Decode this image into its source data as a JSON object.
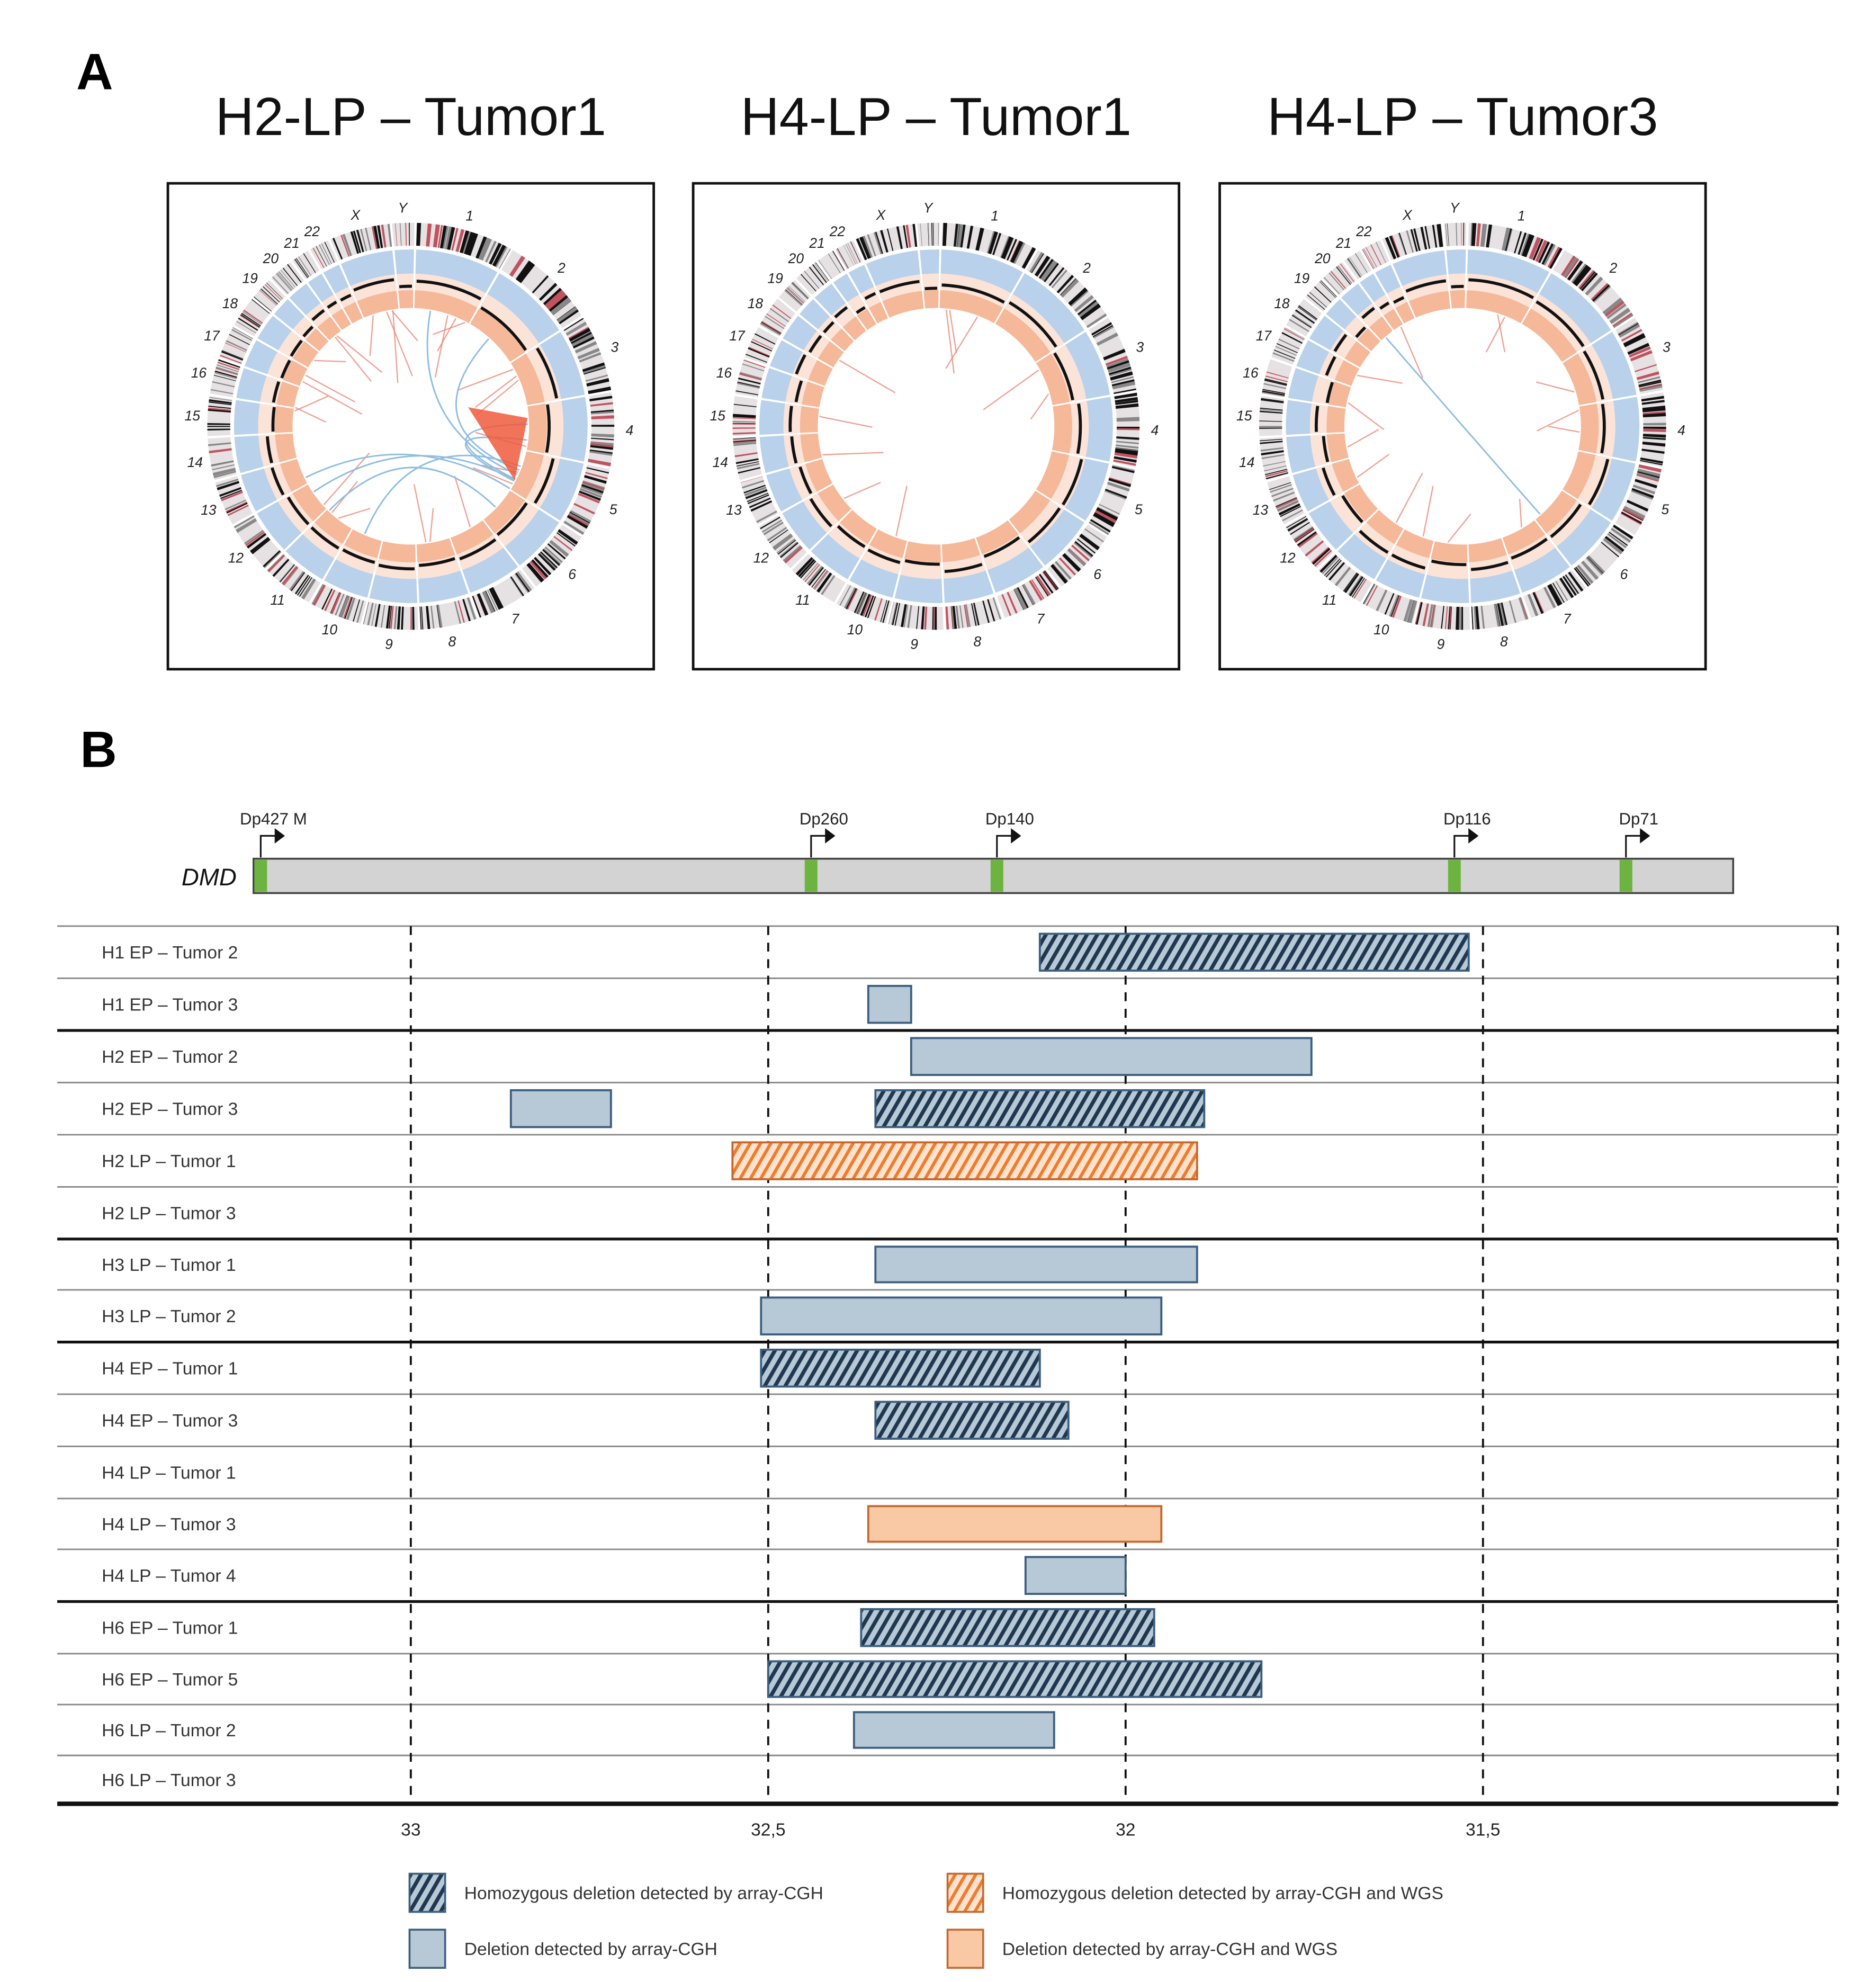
{
  "panel_a": {
    "label": "A",
    "plots": [
      {
        "title": "H2-LP – Tumor1"
      },
      {
        "title": "H4-LP – Tumor1"
      },
      {
        "title": "H4-LP – Tumor3"
      }
    ],
    "chromosomes": [
      "1",
      "2",
      "3",
      "4",
      "5",
      "6",
      "7",
      "8",
      "9",
      "10",
      "11",
      "12",
      "13",
      "14",
      "15",
      "16",
      "17",
      "18",
      "19",
      "20",
      "21",
      "22",
      "X",
      "Y"
    ]
  },
  "panel_b": {
    "label": "B"
  },
  "chart_data": {
    "type": "range-bar",
    "title": "",
    "xlabel": "",
    "ylabel": "",
    "x_ticks": [
      "33",
      "32,5",
      "32",
      "31,5"
    ],
    "x_tick_values": [
      33,
      32.5,
      32,
      31.5
    ],
    "xlim": [
      33.5,
      31.0
    ],
    "x_reversed": true,
    "gene": {
      "name": "DMD",
      "start": 33.22,
      "end": 31.15,
      "promoters": [
        {
          "name": "Dp427 M",
          "pos": 33.21
        },
        {
          "name": "Dp260",
          "pos": 32.44
        },
        {
          "name": "Dp140",
          "pos": 32.18
        },
        {
          "name": "Dp116",
          "pos": 31.54
        },
        {
          "name": "Dp71",
          "pos": 31.3
        }
      ]
    },
    "rows": [
      {
        "label": "H1 EP – Tumor 2",
        "segments": [
          {
            "start": 32.12,
            "end": 31.52,
            "type": "homo_cgh"
          }
        ]
      },
      {
        "label": "H1 EP – Tumor 3",
        "segments": [
          {
            "start": 32.36,
            "end": 32.3,
            "type": "del_cgh"
          }
        ]
      },
      {
        "label": "H2 EP – Tumor 2",
        "segments": [
          {
            "start": 32.3,
            "end": 31.74,
            "type": "del_cgh"
          }
        ]
      },
      {
        "label": "H2 EP – Tumor 3",
        "segments": [
          {
            "start": 32.86,
            "end": 32.72,
            "type": "del_cgh"
          },
          {
            "start": 32.35,
            "end": 31.89,
            "type": "homo_cgh"
          }
        ]
      },
      {
        "label": "H2 LP – Tumor 1",
        "segments": [
          {
            "start": 32.55,
            "end": 31.9,
            "type": "homo_cgh_wgs"
          }
        ]
      },
      {
        "label": "H2 LP – Tumor 3",
        "segments": []
      },
      {
        "label": "H3 LP – Tumor 1",
        "segments": [
          {
            "start": 32.35,
            "end": 31.9,
            "type": "del_cgh"
          }
        ]
      },
      {
        "label": "H3 LP – Tumor 2",
        "segments": [
          {
            "start": 32.51,
            "end": 31.95,
            "type": "del_cgh"
          }
        ]
      },
      {
        "label": "H4 EP – Tumor 1",
        "segments": [
          {
            "start": 32.51,
            "end": 32.12,
            "type": "homo_cgh"
          }
        ]
      },
      {
        "label": "H4 EP – Tumor 3",
        "segments": [
          {
            "start": 32.35,
            "end": 32.08,
            "type": "homo_cgh"
          }
        ]
      },
      {
        "label": "H4 LP – Tumor 1",
        "segments": []
      },
      {
        "label": "H4 LP – Tumor 3",
        "segments": [
          {
            "start": 32.36,
            "end": 31.95,
            "type": "del_cgh_wgs"
          }
        ]
      },
      {
        "label": "H4 LP – Tumor 4",
        "segments": [
          {
            "start": 32.14,
            "end": 32.0,
            "type": "del_cgh"
          }
        ]
      },
      {
        "label": "H6 EP – Tumor 1",
        "segments": [
          {
            "start": 32.37,
            "end": 31.96,
            "type": "homo_cgh"
          }
        ]
      },
      {
        "label": "H6 EP – Tumor 5",
        "segments": [
          {
            "start": 32.5,
            "end": 31.81,
            "type": "homo_cgh"
          }
        ]
      },
      {
        "label": "H6 LP – Tumor 2",
        "segments": [
          {
            "start": 32.38,
            "end": 32.1,
            "type": "del_cgh"
          }
        ]
      },
      {
        "label": "H6 LP – Tumor 3",
        "segments": []
      }
    ],
    "group_ends": [
      1,
      5,
      7,
      12,
      16
    ],
    "legend": [
      {
        "type": "homo_cgh",
        "label": "Homozygous deletion detected by array-CGH"
      },
      {
        "type": "del_cgh",
        "label": "Deletion detected by array-CGH"
      },
      {
        "type": "homo_cgh_wgs",
        "label": "Homozygous deletion detected by array-CGH and WGS"
      },
      {
        "type": "del_cgh_wgs",
        "label": "Deletion detected by array-CGH and WGS"
      }
    ],
    "legend_position": "bottom",
    "colors": {
      "blue_fill": "#b7c9d6",
      "blue_stroke": "#3c5e7e",
      "blue_hatch": "#1f3850",
      "orange_fill": "#f9c9a6",
      "orange_stroke": "#c4682e",
      "orange_hatch": "#ef7b2b",
      "gene_bar": "#d3d3d3",
      "promoter": "#6db33f"
    }
  }
}
